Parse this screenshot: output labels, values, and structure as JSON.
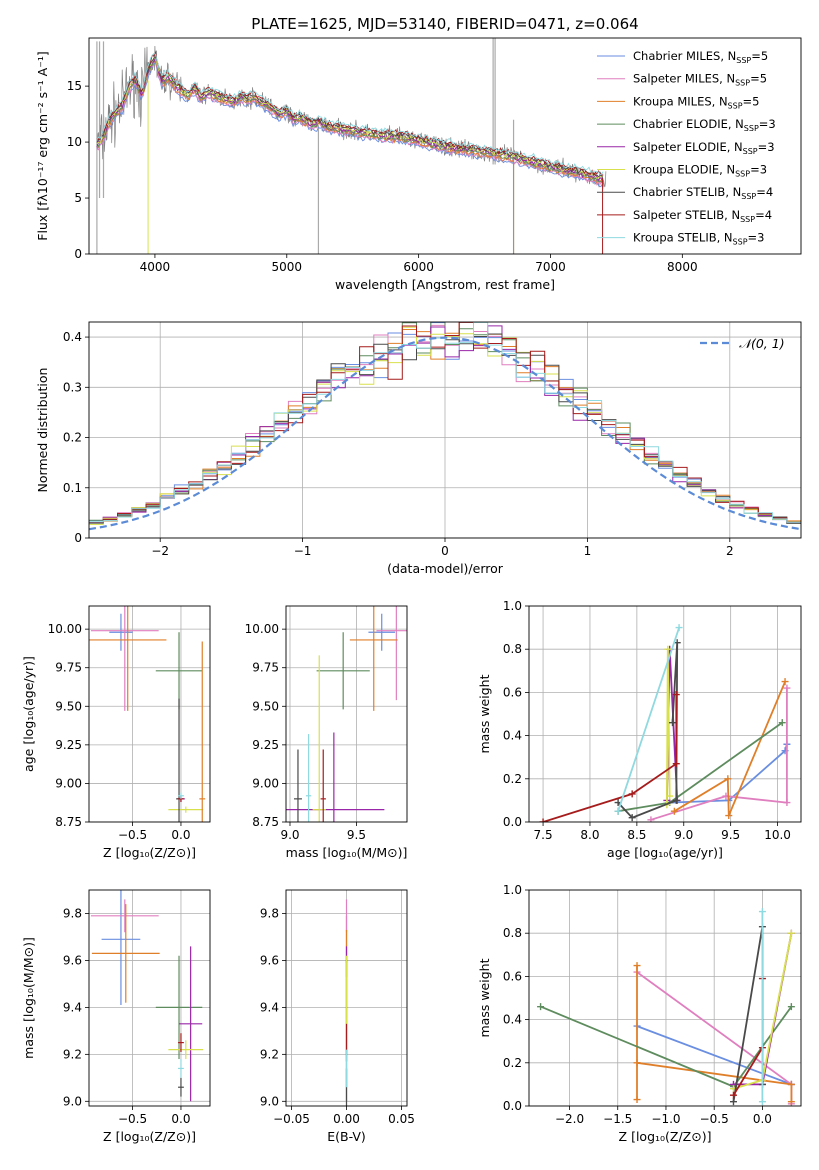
{
  "figure": {
    "title": "PLATE=1625, MJD=53140, FIBERID=0471, z=0.064"
  },
  "colors": {
    "Chabrier MILES": "#6a8ee0",
    "Salpeter MILES": "#e07fbf",
    "Kroupa MILES": "#e07f29",
    "Chabrier ELODIE": "#5e8c5e",
    "Salpeter ELODIE": "#9926a8",
    "Kroupa ELODIE": "#d8e04c",
    "Chabrier STELIB": "#4a4a4a",
    "Salpeter STELIB": "#a61c1c",
    "Kroupa STELIB": "#8fd9e0",
    "gauss": "#5b8bd6",
    "observed": "#808080"
  },
  "chart_data": [
    {
      "id": "spectrum",
      "type": "line",
      "xlabel": "wavelength [Angstrom, rest frame]",
      "ylabel": "Flux [fλ10⁻¹⁷ erg cm⁻² s⁻¹ A⁻¹]",
      "xlim": [
        3500,
        8900
      ],
      "ylim": [
        0,
        19.3
      ],
      "xticks": [
        4000,
        5000,
        6000,
        7000,
        8000
      ],
      "yticks": [
        0,
        5,
        10,
        15
      ],
      "grid": false,
      "legend": "top-right",
      "legend_entries": [
        {
          "name": "Chabrier MILES",
          "nssp": "5"
        },
        {
          "name": "Salpeter MILES",
          "nssp": "5"
        },
        {
          "name": "Kroupa MILES",
          "nssp": "5"
        },
        {
          "name": "Chabrier ELODIE",
          "nssp": "3"
        },
        {
          "name": "Salpeter ELODIE",
          "nssp": "3"
        },
        {
          "name": "Kroupa ELODIE",
          "nssp": "3"
        },
        {
          "name": "Chabrier STELIB",
          "nssp": "4"
        },
        {
          "name": "Salpeter STELIB",
          "nssp": "4"
        },
        {
          "name": "Kroupa STELIB",
          "nssp": "3"
        }
      ],
      "observed": {
        "x": [
          3560,
          3600,
          3650,
          3700,
          3750,
          3800,
          3850,
          3900,
          3950,
          4000,
          4050,
          4100,
          4150,
          4200,
          4250,
          4300,
          4350,
          4400,
          4450,
          4500,
          4550,
          4600,
          4650,
          4700,
          4750,
          4800,
          4850,
          4900,
          4950,
          5000,
          5050,
          5100,
          5150,
          5200,
          5250,
          5300,
          5400,
          5500,
          5600,
          5700,
          5800,
          5900,
          6000,
          6100,
          6200,
          6300,
          6400,
          6500,
          6600,
          6700,
          6800,
          6900,
          7000,
          7100,
          7200,
          7300,
          7400
        ],
        "y": [
          9.8,
          10.2,
          11.8,
          12.6,
          13.2,
          14.8,
          15.6,
          14.2,
          16.4,
          17.6,
          15.4,
          15.8,
          15.1,
          14.6,
          14.2,
          14.8,
          14.0,
          14.4,
          14.2,
          14.0,
          13.8,
          13.6,
          14.1,
          13.8,
          14.0,
          13.6,
          13.4,
          12.8,
          12.5,
          12.8,
          12.0,
          12.2,
          11.8,
          11.6,
          11.8,
          11.4,
          11.2,
          11.0,
          10.8,
          10.6,
          10.5,
          10.4,
          10.1,
          9.9,
          9.6,
          9.4,
          9.3,
          9.1,
          8.9,
          8.7,
          8.4,
          8.1,
          7.8,
          7.5,
          7.3,
          7.0,
          6.6
        ]
      },
      "model_range": [
        3560,
        7400
      ]
    },
    {
      "id": "residuals",
      "type": "histogram",
      "xlabel": "(data-model)/error",
      "ylabel": "Normed distribution",
      "xlim": [
        -2.5,
        2.5
      ],
      "ylim": [
        0,
        0.43
      ],
      "xticks": [
        -2,
        -1,
        0,
        1,
        2
      ],
      "yticks": [
        0.0,
        0.1,
        0.2,
        0.3,
        0.4
      ],
      "grid": true,
      "legend": "top-right",
      "gauss_label": "𝒩(0, 1)",
      "bin_width": 0.1
    },
    {
      "id": "age-vs-Z",
      "type": "errorbar",
      "xlabel": "Z [log₁₀(Z/Z⊙)]",
      "ylabel": "age  [log₁₀(age/yr)]",
      "xlim": [
        -0.95,
        0.3
      ],
      "ylim": [
        8.75,
        10.15
      ],
      "xticks": [
        -0.5,
        0.0
      ],
      "xtick_labels": [
        "−0.5",
        "0.0"
      ],
      "yticks": [
        8.75,
        9.0,
        9.25,
        9.5,
        9.75,
        10.0
      ],
      "ytick_labels": [
        "8.75",
        "9.00",
        "9.25",
        "9.50",
        "9.75",
        "10.00"
      ],
      "grid": true,
      "points": [
        {
          "model": "Chabrier MILES",
          "x": -0.62,
          "xerr": 0.12,
          "y": 9.98,
          "yerr": 0.12
        },
        {
          "model": "Salpeter MILES",
          "x": -0.58,
          "xerr": 0.35,
          "y": 9.99,
          "yerr": 0.52
        },
        {
          "model": "Kroupa MILES",
          "x": -0.55,
          "xerr": 0.4,
          "y": 9.93,
          "yerr": 0.46
        },
        {
          "model": "Chabrier ELODIE",
          "x": -0.02,
          "xerr": 0.24,
          "y": 9.73,
          "yerr": 0.25
        },
        {
          "model": "Salpeter ELODIE",
          "x": 0.0,
          "xerr": 0.04,
          "y": 8.9,
          "yerr": 0.02
        },
        {
          "model": "Kroupa ELODIE",
          "x": 0.05,
          "xerr": 0.18,
          "y": 8.83,
          "yerr": 0.02
        },
        {
          "model": "Chabrier STELIB",
          "x": -0.02,
          "xerr": 0.03,
          "y": 8.9,
          "yerr": 0.65
        },
        {
          "model": "Salpeter STELIB",
          "x": 0.0,
          "xerr": 0.03,
          "y": 8.9,
          "yerr": 0.02
        },
        {
          "model": "Kroupa STELIB",
          "x": 0.0,
          "xerr": 0.03,
          "y": 8.92,
          "yerr": 0.02
        },
        {
          "model": "Kroupa MILES",
          "x": 0.22,
          "xerr": 0.03,
          "y": 8.9,
          "yerr": 1.02
        }
      ]
    },
    {
      "id": "age-vs-mass",
      "type": "errorbar",
      "xlabel": "mass [log₁₀(M/M⊙)]",
      "ylabel": "",
      "xlim": [
        8.97,
        9.88
      ],
      "ylim": [
        8.75,
        10.15
      ],
      "xticks": [
        9.0,
        9.5
      ],
      "xtick_labels": [
        "9.0",
        "9.5"
      ],
      "yticks": [
        8.75,
        9.0,
        9.25,
        9.5,
        9.75,
        10.0
      ],
      "ytick_labels": [
        "8.75",
        "9.00",
        "9.25",
        "9.50",
        "9.75",
        "10.00"
      ],
      "grid": true,
      "points": [
        {
          "model": "Chabrier MILES",
          "x": 9.69,
          "xerr": 0.1,
          "y": 9.98,
          "yerr": 0.12
        },
        {
          "model": "Salpeter MILES",
          "x": 9.8,
          "xerr": 0.15,
          "y": 9.99,
          "yerr": 0.45
        },
        {
          "model": "Kroupa MILES",
          "x": 9.63,
          "xerr": 0.18,
          "y": 9.93,
          "yerr": 0.46
        },
        {
          "model": "Chabrier ELODIE",
          "x": 9.4,
          "xerr": 0.2,
          "y": 9.73,
          "yerr": 0.25
        },
        {
          "model": "Salpeter ELODIE",
          "x": 9.33,
          "xerr": 0.38,
          "y": 8.83,
          "yerr": 0.5
        },
        {
          "model": "Kroupa ELODIE",
          "x": 9.22,
          "xerr": 0.05,
          "y": 8.83,
          "yerr": 1.0
        },
        {
          "model": "Chabrier STELIB",
          "x": 9.06,
          "xerr": 0.03,
          "y": 8.9,
          "yerr": 0.32
        },
        {
          "model": "Salpeter STELIB",
          "x": 9.25,
          "xerr": 0.02,
          "y": 8.9,
          "yerr": 0.32
        },
        {
          "model": "Kroupa STELIB",
          "x": 9.14,
          "xerr": 0.02,
          "y": 8.92,
          "yerr": 0.4
        }
      ]
    },
    {
      "id": "weight-vs-age",
      "type": "line",
      "xlabel": "age  [log₁₀(age/yr)]",
      "ylabel": "mass weight",
      "xlim": [
        7.35,
        10.25
      ],
      "ylim": [
        0,
        1.0
      ],
      "xticks": [
        7.5,
        8.0,
        8.5,
        9.0,
        9.5,
        10.0
      ],
      "xtick_labels": [
        "7.5",
        "8.0",
        "8.5",
        "9.0",
        "9.5",
        "10.0"
      ],
      "yticks": [
        0.0,
        0.2,
        0.4,
        0.6,
        0.8,
        1.0
      ],
      "ytick_labels": [
        "0.0",
        "0.2",
        "0.4",
        "0.6",
        "0.8",
        "1.0"
      ],
      "grid": true,
      "series": [
        {
          "model": "Chabrier MILES",
          "x": [
            8.85,
            9.48,
            10.08,
            10.1
          ],
          "y": [
            0.09,
            0.1,
            0.33,
            0.36
          ]
        },
        {
          "model": "Salpeter MILES",
          "x": [
            8.65,
            9.45,
            10.1,
            10.1
          ],
          "y": [
            0.01,
            0.12,
            0.09,
            0.62
          ]
        },
        {
          "model": "Kroupa MILES",
          "x": [
            8.9,
            9.47,
            9.48,
            10.08
          ],
          "y": [
            0.05,
            0.2,
            0.03,
            0.65
          ]
        },
        {
          "model": "Chabrier ELODIE",
          "x": [
            8.3,
            8.85,
            10.05
          ],
          "y": [
            0.05,
            0.09,
            0.46
          ]
        },
        {
          "model": "Salpeter ELODIE",
          "x": [
            8.82,
            8.85,
            8.93
          ],
          "y": [
            0.1,
            0.8,
            0.1
          ]
        },
        {
          "model": "Kroupa ELODIE",
          "x": [
            8.82,
            8.83,
            8.85
          ],
          "y": [
            0.08,
            0.8,
            0.12
          ]
        },
        {
          "model": "Chabrier STELIB",
          "x": [
            8.3,
            8.45,
            8.92,
            8.93,
            8.88
          ],
          "y": [
            0.09,
            0.02,
            0.1,
            0.83,
            0.46
          ]
        },
        {
          "model": "Salpeter STELIB",
          "x": [
            7.5,
            8.45,
            8.92,
            8.92
          ],
          "y": [
            0.0,
            0.13,
            0.27,
            0.59
          ]
        },
        {
          "model": "Kroupa STELIB",
          "x": [
            8.3,
            8.95
          ],
          "y": [
            0.05,
            0.9
          ]
        }
      ]
    },
    {
      "id": "mass-vs-Z",
      "type": "errorbar",
      "xlabel": "Z [log₁₀(Z/Z⊙)]",
      "ylabel": "mass [log₁₀(M/M⊙)]",
      "xlim": [
        -0.95,
        0.3
      ],
      "ylim": [
        8.98,
        9.9
      ],
      "xticks": [
        -0.5,
        0.0
      ],
      "xtick_labels": [
        "−0.5",
        "0.0"
      ],
      "yticks": [
        9.0,
        9.2,
        9.4,
        9.6,
        9.8
      ],
      "ytick_labels": [
        "9.0",
        "9.2",
        "9.4",
        "9.6",
        "9.8"
      ],
      "grid": true,
      "points": [
        {
          "model": "Chabrier MILES",
          "x": -0.62,
          "xerr": 0.2,
          "y": 9.69,
          "yerr": 0.28
        },
        {
          "model": "Salpeter MILES",
          "x": -0.58,
          "xerr": 0.35,
          "y": 9.79,
          "yerr": 0.07
        },
        {
          "model": "Kroupa MILES",
          "x": -0.57,
          "xerr": 0.35,
          "y": 9.63,
          "yerr": 0.21
        },
        {
          "model": "Chabrier ELODIE",
          "x": -0.02,
          "xerr": 0.24,
          "y": 9.4,
          "yerr": 0.22
        },
        {
          "model": "Salpeter ELODIE",
          "x": 0.1,
          "xerr": 0.12,
          "y": 9.33,
          "yerr": 0.33
        },
        {
          "model": "Kroupa ELODIE",
          "x": 0.05,
          "xerr": 0.18,
          "y": 9.22,
          "yerr": 0.04
        },
        {
          "model": "Chabrier STELIB",
          "x": 0.0,
          "xerr": 0.03,
          "y": 9.06,
          "yerr": 0.04
        },
        {
          "model": "Salpeter STELIB",
          "x": 0.0,
          "xerr": 0.03,
          "y": 9.25,
          "yerr": 0.04
        },
        {
          "model": "Kroupa STELIB",
          "x": 0.0,
          "xerr": 0.03,
          "y": 9.14,
          "yerr": 0.04
        }
      ]
    },
    {
      "id": "mass-vs-ebv",
      "type": "errorbar",
      "xlabel": "E(B-V)",
      "ylabel": "",
      "xlim": [
        -0.055,
        0.055
      ],
      "ylim": [
        8.98,
        9.9
      ],
      "xticks": [
        -0.05,
        0.0,
        0.05
      ],
      "xtick_labels": [
        "−0.05",
        "0.00",
        "0.05"
      ],
      "yticks": [
        9.0,
        9.2,
        9.4,
        9.6,
        9.8
      ],
      "ytick_labels": [
        "9.0",
        "9.2",
        "9.4",
        "9.6",
        "9.8"
      ],
      "grid": true,
      "points": [
        {
          "model": "Chabrier MILES",
          "x": 0.0,
          "xerr": 0.0,
          "y": 9.69,
          "yerr": 0.1
        },
        {
          "model": "Salpeter MILES",
          "x": 0.0,
          "xerr": 0.0,
          "y": 9.79,
          "yerr": 0.07
        },
        {
          "model": "Kroupa MILES",
          "x": 0.0,
          "xerr": 0.0,
          "y": 9.63,
          "yerr": 0.1
        },
        {
          "model": "Chabrier ELODIE",
          "x": 0.0,
          "xerr": 0.0,
          "y": 9.4,
          "yerr": 0.2
        },
        {
          "model": "Salpeter ELODIE",
          "x": 0.0,
          "xerr": 0.0,
          "y": 9.33,
          "yerr": 0.33
        },
        {
          "model": "Kroupa ELODIE",
          "x": 0.0,
          "xerr": 0.0,
          "y": 9.22,
          "yerr": 0.4
        },
        {
          "model": "Chabrier STELIB",
          "x": 0.0,
          "xerr": 0.0,
          "y": 9.06,
          "yerr": 0.08
        },
        {
          "model": "Salpeter STELIB",
          "x": 0.0,
          "xerr": 0.0,
          "y": 9.25,
          "yerr": 0.08
        },
        {
          "model": "Kroupa STELIB",
          "x": 0.0,
          "xerr": 0.0,
          "y": 9.14,
          "yerr": 0.08
        }
      ]
    },
    {
      "id": "weight-vs-Z",
      "type": "line",
      "xlabel": "Z [log₁₀(Z/Z⊙)]",
      "ylabel": "mass weight",
      "xlim": [
        -2.42,
        0.4
      ],
      "ylim": [
        0,
        1.0
      ],
      "xticks": [
        -2.0,
        -1.5,
        -1.0,
        -0.5,
        0.0
      ],
      "xtick_labels": [
        "−2.0",
        "−1.5",
        "−1.0",
        "−0.5",
        "0.0"
      ],
      "yticks": [
        0.0,
        0.2,
        0.4,
        0.6,
        0.8,
        1.0
      ],
      "ytick_labels": [
        "0.0",
        "0.2",
        "0.4",
        "0.6",
        "0.8",
        "1.0"
      ],
      "grid": true,
      "series": [
        {
          "model": "Chabrier MILES",
          "x": [
            -1.3,
            0.3,
            0.3
          ],
          "y": [
            0.37,
            0.1,
            0.1
          ]
        },
        {
          "model": "Salpeter MILES",
          "x": [
            -1.3,
            0.3,
            0.3
          ],
          "y": [
            0.62,
            0.1,
            0.01
          ]
        },
        {
          "model": "Kroupa MILES",
          "x": [
            -1.3,
            -1.3,
            -1.3,
            0.3,
            0.3
          ],
          "y": [
            0.03,
            0.65,
            0.2,
            0.1,
            0.02
          ]
        },
        {
          "model": "Chabrier ELODIE",
          "x": [
            -2.3,
            -0.3,
            0.3
          ],
          "y": [
            0.46,
            0.09,
            0.46
          ]
        },
        {
          "model": "Salpeter ELODIE",
          "x": [
            -0.3,
            0.0,
            0.3
          ],
          "y": [
            0.1,
            0.1,
            0.8
          ]
        },
        {
          "model": "Kroupa ELODIE",
          "x": [
            -0.3,
            0.0,
            0.3
          ],
          "y": [
            0.08,
            0.12,
            0.8
          ]
        },
        {
          "model": "Chabrier STELIB",
          "x": [
            -0.3,
            0.0,
            0.0
          ],
          "y": [
            0.02,
            0.83,
            0.1
          ]
        },
        {
          "model": "Salpeter STELIB",
          "x": [
            -0.3,
            0.0,
            0.0
          ],
          "y": [
            0.05,
            0.27,
            0.59
          ]
        },
        {
          "model": "Kroupa STELIB",
          "x": [
            0.0,
            0.0
          ],
          "y": [
            0.02,
            0.9
          ]
        }
      ]
    }
  ]
}
